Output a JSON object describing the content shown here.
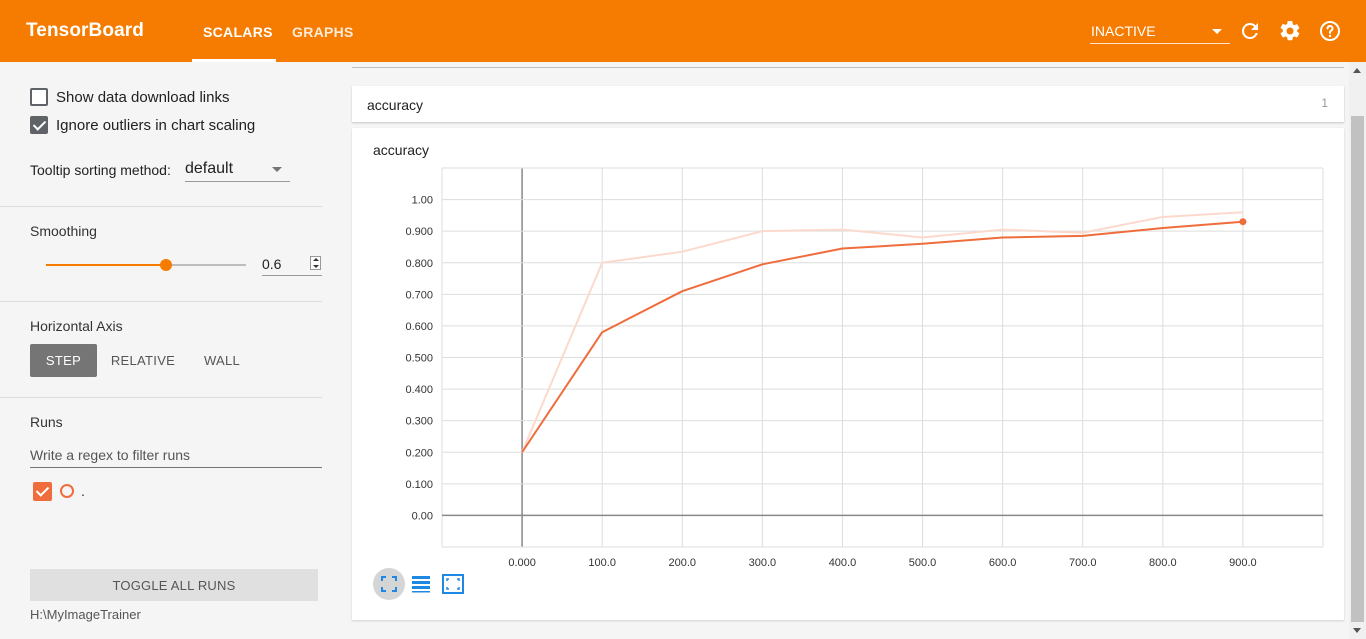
{
  "header": {
    "brand": "TensorBoard",
    "tabs": [
      {
        "label": "SCALARS",
        "active": true
      },
      {
        "label": "GRAPHS",
        "active": false
      }
    ],
    "run_status": "INACTIVE",
    "icons": [
      "refresh-icon",
      "gear-icon",
      "help-icon"
    ],
    "color": "#f57c00"
  },
  "sidebar": {
    "show_download_links": {
      "label": "Show data download links",
      "checked": false
    },
    "ignore_outliers": {
      "label": "Ignore outliers in chart scaling",
      "checked": true
    },
    "tooltip_sorting": {
      "label": "Tooltip sorting method:",
      "value": "default"
    },
    "smoothing": {
      "label": "Smoothing",
      "value": "0.6",
      "fraction": 0.6
    },
    "horizontal_axis": {
      "label": "Horizontal Axis",
      "options": [
        "STEP",
        "RELATIVE",
        "WALL"
      ],
      "selected": "STEP"
    },
    "runs": {
      "label": "Runs",
      "filter_placeholder": "Write a regex to filter runs",
      "items": [
        {
          "name": ".",
          "checked": true,
          "color": "#ef6c3c"
        }
      ],
      "toggle_all_label": "TOGGLE ALL RUNS",
      "logdir": "H:\\MyImageTrainer"
    }
  },
  "main": {
    "category": {
      "title": "accuracy",
      "count": "1"
    },
    "card": {
      "title": "accuracy"
    },
    "toolbar_icons": [
      "fit-domain-icon",
      "data-table-icon",
      "log-scale-icon"
    ]
  },
  "chart_data": {
    "type": "line",
    "title": "accuracy",
    "x_tick_labels": [
      "0.000",
      "100.0",
      "200.0",
      "300.0",
      "400.0",
      "500.0",
      "600.0",
      "700.0",
      "800.0",
      "900.0"
    ],
    "y_tick_labels": [
      "0.00",
      "0.100",
      "0.200",
      "0.300",
      "0.400",
      "0.500",
      "0.600",
      "0.700",
      "0.800",
      "0.900",
      "1.00"
    ],
    "xlim": [
      -100,
      1000
    ],
    "ylim": [
      -0.1,
      1.1
    ],
    "grid": true,
    "series": [
      {
        "smoothed": true,
        "color": "#ef6c3c",
        "x": [
          0,
          100,
          200,
          300,
          400,
          500,
          600,
          700,
          800,
          900
        ],
        "y": [
          0.2,
          0.58,
          0.71,
          0.795,
          0.845,
          0.86,
          0.88,
          0.885,
          0.91,
          0.93
        ]
      },
      {
        "smoothed": false,
        "color": "#fbd9cc",
        "x": [
          0,
          100,
          200,
          300,
          400,
          500,
          600,
          700,
          800,
          900
        ],
        "y": [
          0.2,
          0.8,
          0.835,
          0.9,
          0.905,
          0.88,
          0.905,
          0.895,
          0.945,
          0.96
        ]
      }
    ]
  }
}
